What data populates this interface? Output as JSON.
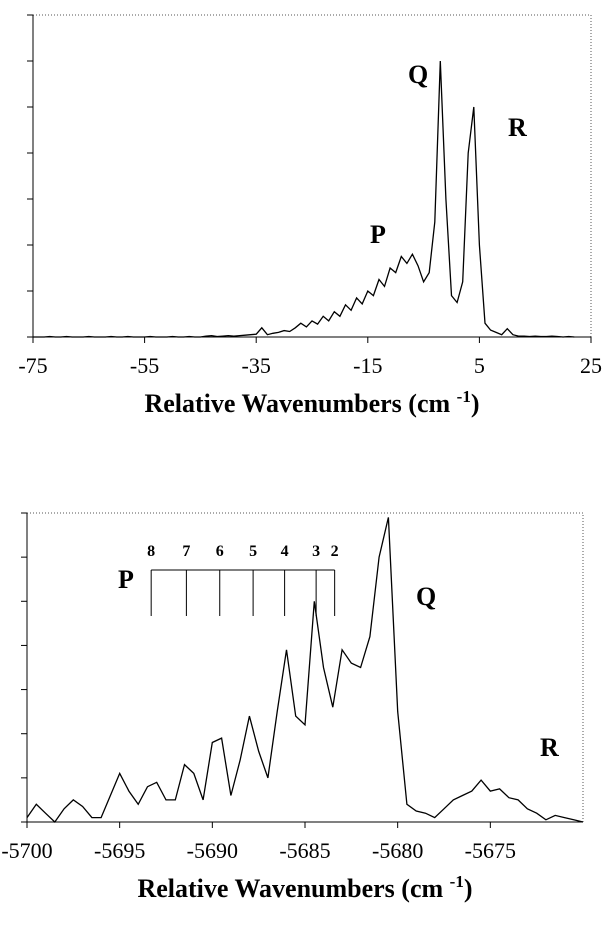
{
  "chart_data": [
    {
      "type": "line",
      "xlabel": [
        "Relative Wavenumbers (cm ",
        "-1",
        ")"
      ],
      "annotations": [
        "P",
        "Q",
        "R"
      ],
      "xlim": [
        -75,
        25
      ],
      "xticks": [
        -75,
        -55,
        -35,
        -15,
        5,
        25
      ],
      "ylim": [
        0,
        7
      ],
      "yticks": [
        0,
        1,
        2,
        3,
        4,
        5,
        6,
        7
      ],
      "color": "#000000",
      "x": [
        -75,
        -74,
        -73,
        -72,
        -71,
        -70,
        -69,
        -68,
        -67,
        -66,
        -65,
        -64,
        -63,
        -62,
        -61,
        -60,
        -59,
        -58,
        -57,
        -56,
        -55,
        -54,
        -53,
        -52,
        -51,
        -50,
        -49,
        -48,
        -47,
        -46,
        -45,
        -44,
        -43,
        -42,
        -41,
        -40,
        -39,
        -38,
        -37,
        -36,
        -35,
        -34,
        -33,
        -32,
        -31,
        -30,
        -29,
        -28,
        -27,
        -26,
        -25,
        -24,
        -23,
        -22,
        -21,
        -20,
        -19,
        -18,
        -17,
        -16,
        -15,
        -14,
        -13,
        -12,
        -11,
        -10,
        -9,
        -8,
        -7,
        -6,
        -5,
        -4,
        -3,
        -2,
        -1,
        0,
        1,
        2,
        3,
        4,
        5,
        6,
        7,
        8,
        9,
        10,
        11,
        12,
        13,
        14,
        15,
        16,
        17,
        18,
        19,
        20,
        21,
        22
      ],
      "values": [
        0,
        0,
        0,
        0.01,
        0,
        0,
        0.01,
        0,
        0,
        0,
        0.01,
        0,
        0,
        0,
        0.01,
        0,
        0,
        0.01,
        0,
        0,
        0,
        0.01,
        0,
        0,
        0,
        0.01,
        0,
        0,
        0.01,
        0,
        0,
        0.02,
        0.03,
        0.01,
        0.02,
        0.03,
        0.02,
        0.03,
        0.04,
        0.05,
        0.06,
        0.2,
        0.05,
        0.08,
        0.1,
        0.14,
        0.12,
        0.2,
        0.3,
        0.22,
        0.35,
        0.28,
        0.45,
        0.35,
        0.55,
        0.45,
        0.7,
        0.58,
        0.85,
        0.72,
        1.0,
        0.9,
        1.25,
        1.1,
        1.5,
        1.4,
        1.75,
        1.6,
        1.8,
        1.55,
        1.2,
        1.4,
        2.5,
        6.0,
        3.0,
        0.9,
        0.75,
        1.2,
        4.0,
        5.0,
        2.0,
        0.3,
        0.15,
        0.1,
        0.05,
        0.18,
        0.05,
        0.02,
        0.02,
        0.01,
        0.02,
        0.01,
        0.01,
        0.02,
        0.01,
        0,
        0.01,
        0
      ]
    },
    {
      "type": "line",
      "xlabel": [
        "Relative Wavenumbers (cm ",
        "-1",
        ")"
      ],
      "annotations": [
        "P",
        "Q",
        "R"
      ],
      "p_branch": {
        "j": [
          8,
          7,
          6,
          5,
          4,
          3,
          2
        ],
        "x": [
          -5693.3,
          -5691.4,
          -5689.6,
          -5687.8,
          -5686.1,
          -5684.4,
          -5683.4
        ]
      },
      "xlim": [
        -5700,
        -5670
      ],
      "xticks": [
        -5700,
        -5695,
        -5690,
        -5685,
        -5680,
        -5675
      ],
      "ylim": [
        0,
        7
      ],
      "yticks": [
        0,
        1,
        2,
        3,
        4,
        5,
        6,
        7
      ],
      "color": "#000000",
      "x": [
        -5700,
        -5699.5,
        -5699,
        -5698.5,
        -5698,
        -5697.5,
        -5697,
        -5696.5,
        -5696,
        -5695.5,
        -5695,
        -5694.5,
        -5694,
        -5693.5,
        -5693,
        -5692.5,
        -5692,
        -5691.5,
        -5691,
        -5690.5,
        -5690,
        -5689.5,
        -5689,
        -5688.5,
        -5688,
        -5687.5,
        -5687,
        -5686.5,
        -5686,
        -5685.5,
        -5685,
        -5684.5,
        -5684,
        -5683.5,
        -5683,
        -5682.5,
        -5682,
        -5681.5,
        -5681,
        -5680.5,
        -5680,
        -5679.5,
        -5679,
        -5678.5,
        -5678,
        -5677.5,
        -5677,
        -5676.5,
        -5676,
        -5675.5,
        -5675,
        -5674.5,
        -5674,
        -5673.5,
        -5673,
        -5672.5,
        -5672,
        -5671.5,
        -5671,
        -5670.5,
        -5670
      ],
      "values": [
        0.1,
        0.4,
        0.2,
        0.0,
        0.3,
        0.5,
        0.35,
        0.1,
        0.1,
        0.6,
        1.1,
        0.7,
        0.4,
        0.8,
        0.9,
        0.5,
        0.5,
        1.3,
        1.1,
        0.5,
        1.8,
        1.9,
        0.6,
        1.4,
        2.4,
        1.6,
        1.0,
        2.5,
        3.9,
        2.4,
        2.2,
        5.0,
        3.5,
        2.6,
        3.9,
        3.6,
        3.5,
        4.2,
        6.0,
        6.9,
        2.5,
        0.4,
        0.25,
        0.2,
        0.1,
        0.3,
        0.5,
        0.6,
        0.7,
        0.95,
        0.7,
        0.75,
        0.55,
        0.5,
        0.3,
        0.2,
        0.05,
        0.15,
        0.1,
        0.05,
        0
      ]
    }
  ]
}
